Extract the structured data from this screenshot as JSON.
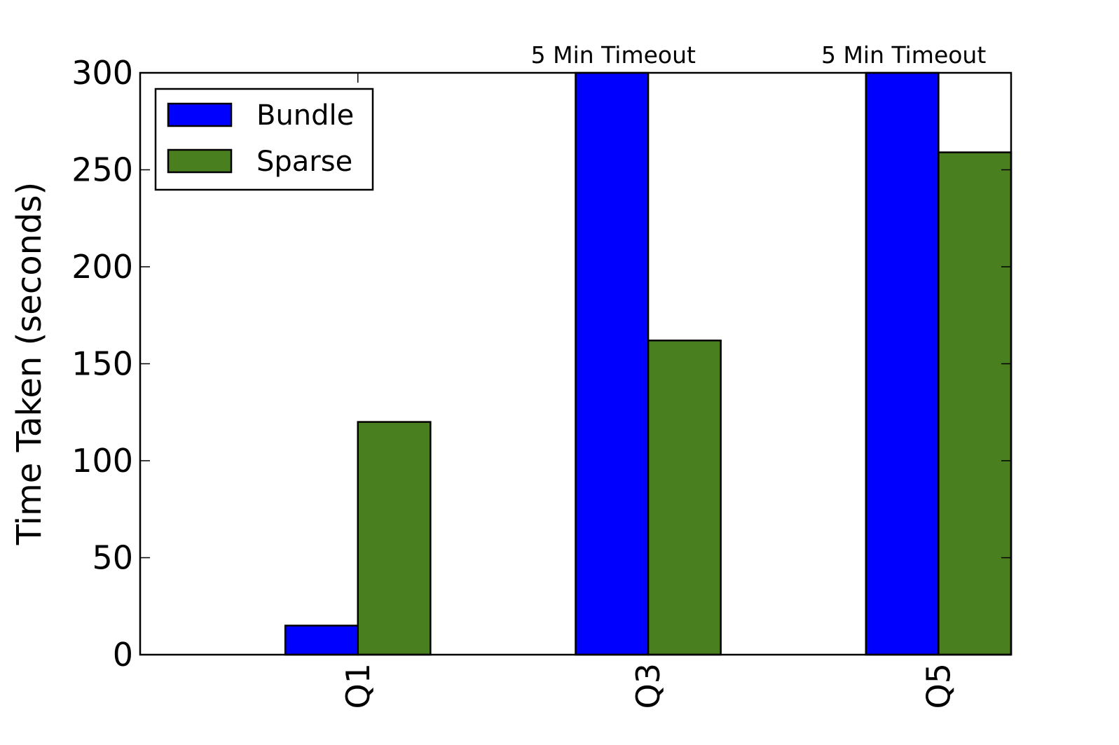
{
  "chart_data": {
    "type": "bar",
    "categories": [
      "Q1",
      "Q3",
      "Q5"
    ],
    "series": [
      {
        "name": "Bundle",
        "color": "#0000ff",
        "values": [
          15,
          300,
          300
        ]
      },
      {
        "name": "Sparse",
        "color": "#4a7f1f",
        "values": [
          120,
          162,
          259
        ]
      }
    ],
    "ylabel": "Time Taken (seconds)",
    "xlabel": "",
    "title": "",
    "ylim": [
      0,
      300
    ],
    "yticks": [
      0,
      50,
      100,
      150,
      200,
      250,
      300
    ],
    "ytick_labels": [
      "0",
      "50",
      "100",
      "150",
      "200",
      "250",
      "300"
    ],
    "annotations": [
      {
        "category": "Q3",
        "text": "5 Min Timeout"
      },
      {
        "category": "Q5",
        "text": "5 Min Timeout"
      }
    ],
    "legend": "top-left",
    "grid": false
  }
}
